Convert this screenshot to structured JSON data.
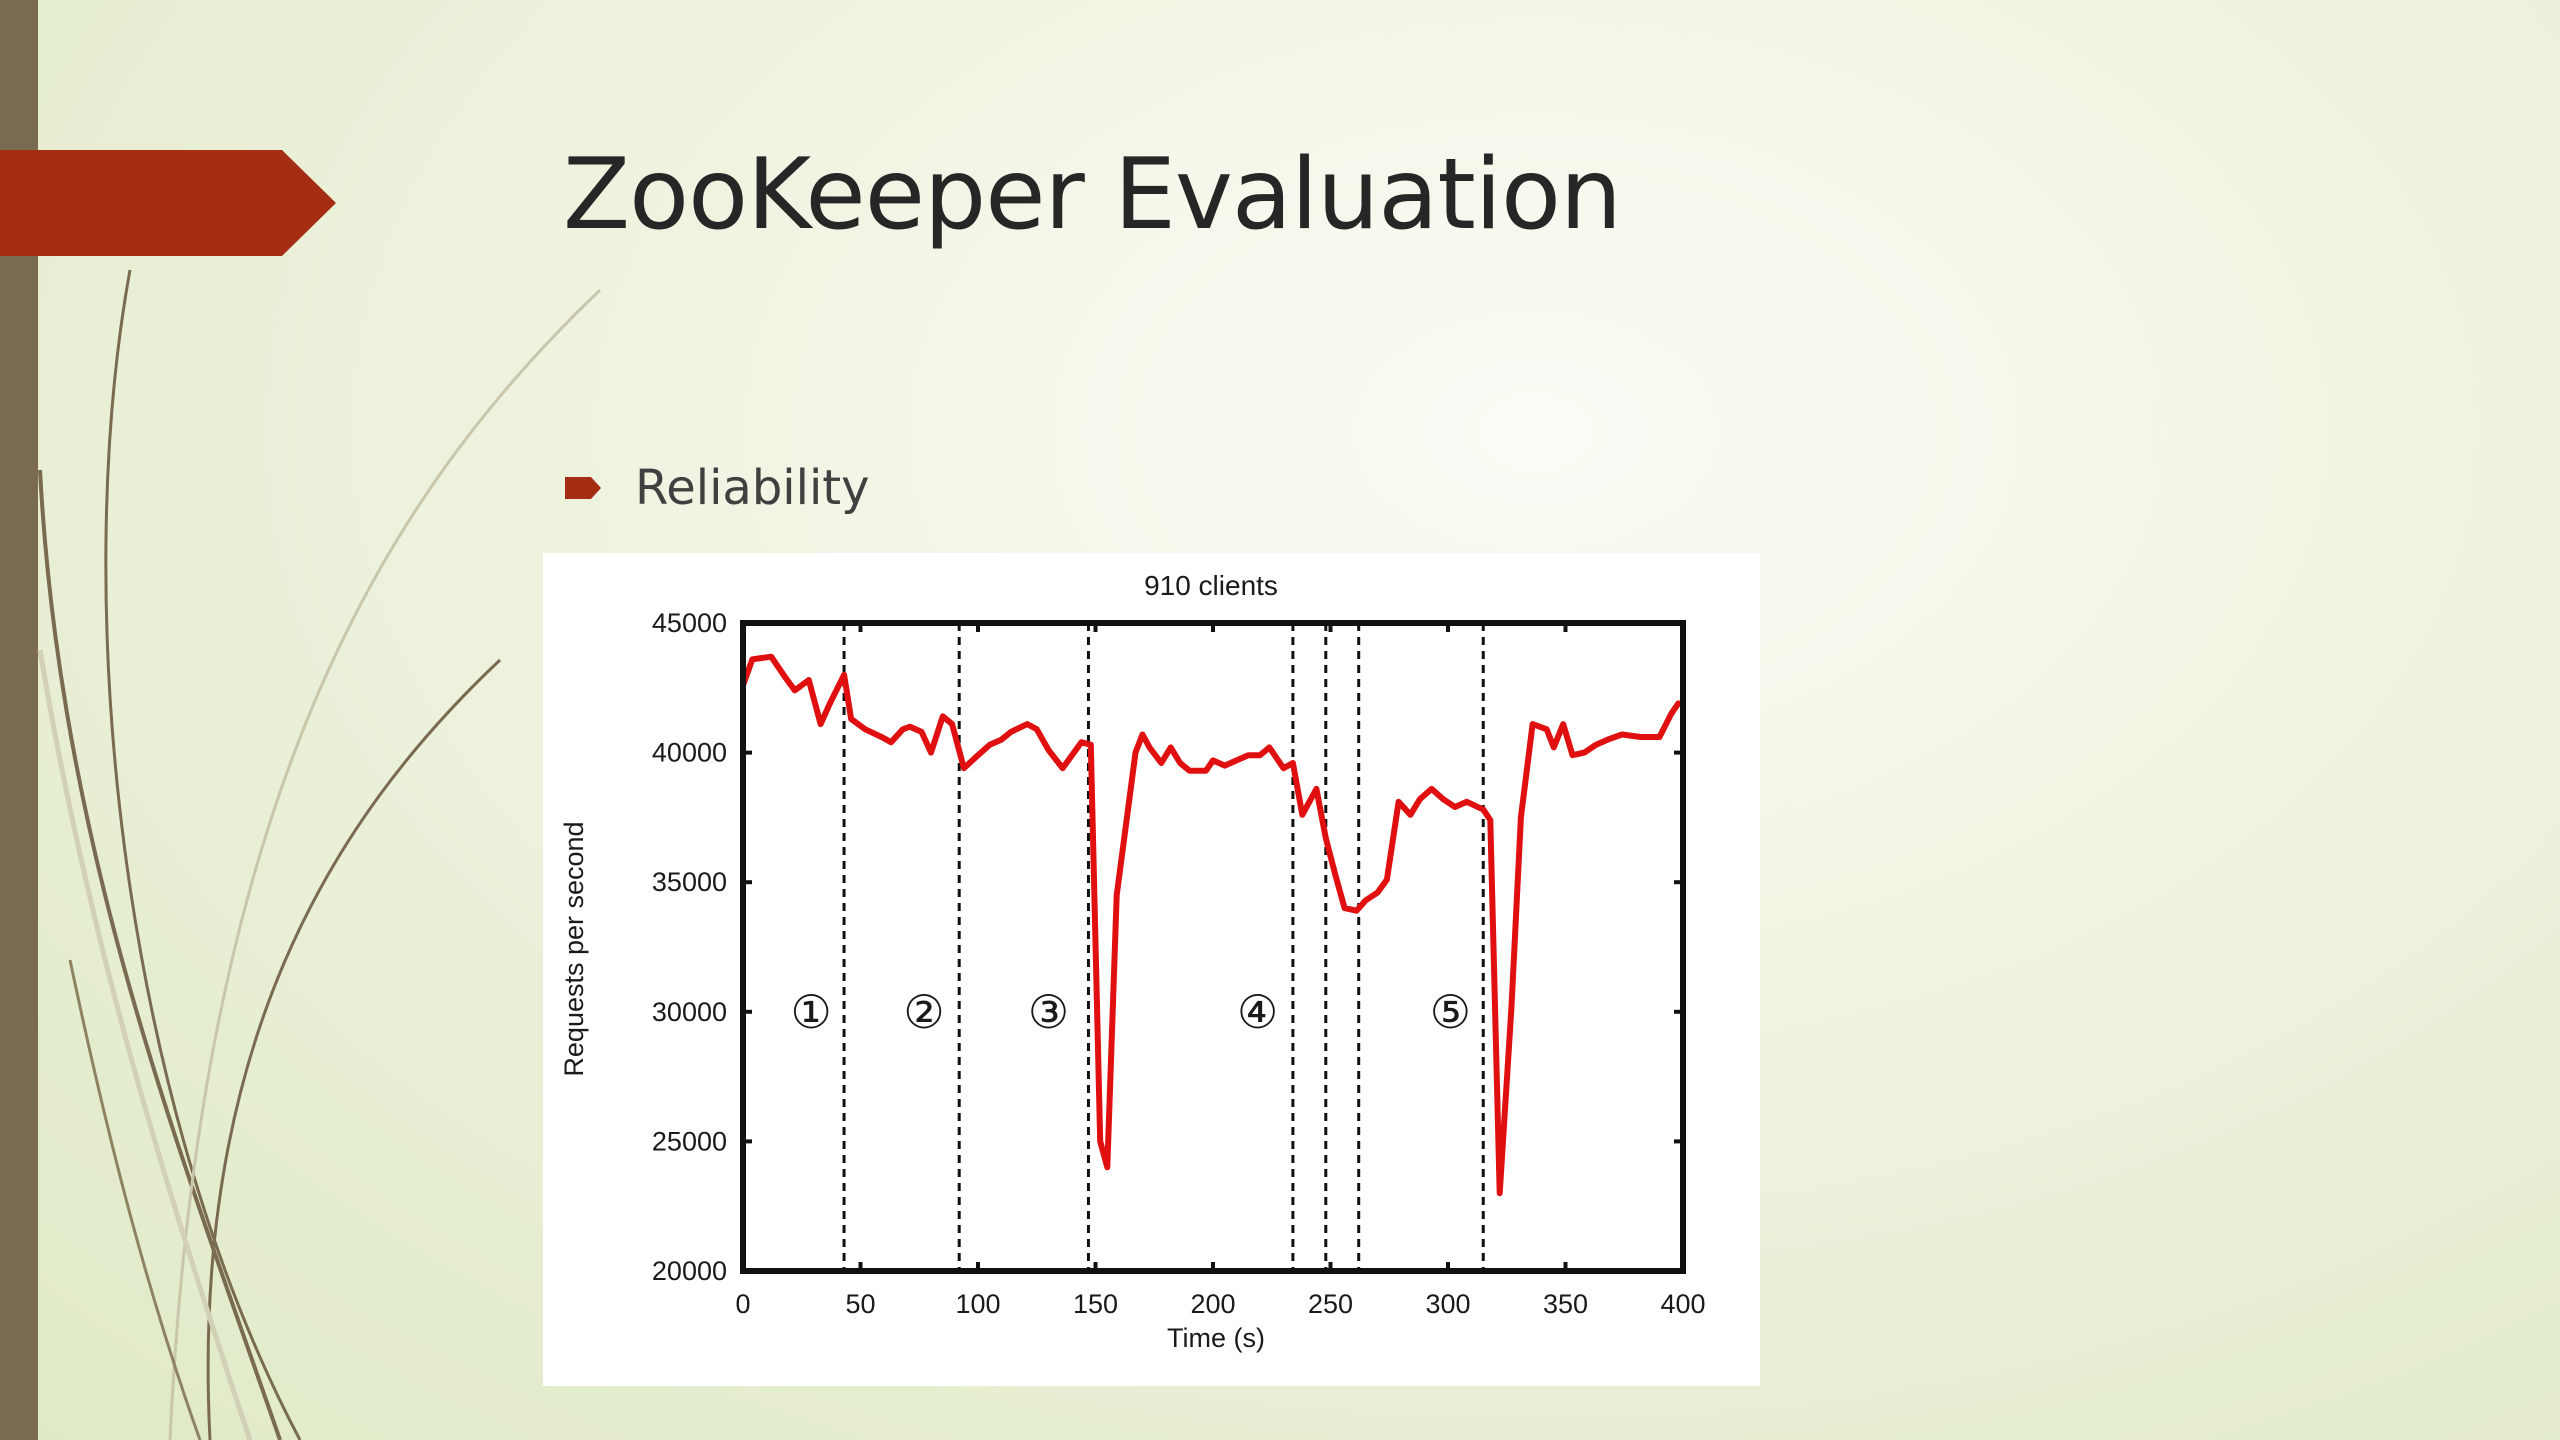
{
  "slide": {
    "title": "ZooKeeper Evaluation",
    "bullet": "Reliability"
  },
  "colors": {
    "accent_arrow": "#a52e12",
    "left_bar": "#7a6a4f",
    "series": "#e01010"
  },
  "chart_data": {
    "type": "line",
    "title": "910 clients",
    "xlabel": "Time (s)",
    "ylabel": "Requests per second",
    "xlim": [
      0,
      400
    ],
    "ylim": [
      20000,
      45000
    ],
    "xticks": [
      0,
      50,
      100,
      150,
      200,
      250,
      300,
      350,
      400
    ],
    "yticks": [
      20000,
      25000,
      30000,
      35000,
      40000,
      45000
    ],
    "xtick_labels": [
      "0",
      "50",
      "100",
      "150",
      "200",
      "250",
      "300",
      "350",
      "400"
    ],
    "ytick_labels": [
      "20000",
      "25000",
      "30000",
      "35000",
      "40000",
      "45000"
    ],
    "grid": false,
    "events": [
      43,
      92,
      147,
      234,
      248,
      262,
      315
    ],
    "annotations": [
      {
        "label": "①",
        "x": 29,
        "y": 30000
      },
      {
        "label": "②",
        "x": 77,
        "y": 30000
      },
      {
        "label": "③",
        "x": 130,
        "y": 30000
      },
      {
        "label": "④",
        "x": 219,
        "y": 30000
      },
      {
        "label": "⑤",
        "x": 301,
        "y": 30000
      }
    ],
    "series": [
      {
        "x": [
          0,
          4,
          12,
          18,
          22,
          28,
          33,
          37,
          43,
          46,
          52,
          59,
          63,
          68,
          71,
          76,
          80,
          85,
          89,
          94,
          100,
          105,
          110,
          114,
          121,
          125,
          130,
          136,
          140,
          144,
          148,
          152,
          155,
          159,
          167,
          170,
          173,
          178,
          182,
          186,
          190,
          197,
          200,
          205,
          210,
          215,
          220,
          224,
          230,
          234,
          238,
          244,
          248,
          252,
          256,
          261,
          265,
          270,
          274,
          279,
          284,
          288,
          293,
          298,
          303,
          308,
          315,
          318,
          322,
          327,
          331,
          336,
          342,
          345,
          349,
          353,
          358,
          363,
          368,
          374,
          382,
          390,
          395,
          398
        ],
        "y": [
          42600,
          43600,
          43700,
          42900,
          42400,
          42800,
          41100,
          41900,
          43000,
          41300,
          40900,
          40600,
          40400,
          40900,
          41000,
          40800,
          40000,
          41400,
          41100,
          39400,
          39900,
          40300,
          40500,
          40800,
          41100,
          40900,
          40100,
          39400,
          39900,
          40400,
          40300,
          25000,
          24000,
          34500,
          40000,
          40700,
          40200,
          39600,
          40200,
          39600,
          39300,
          39300,
          39700,
          39500,
          39700,
          39900,
          39900,
          40200,
          39400,
          39600,
          37600,
          38600,
          36700,
          35300,
          34000,
          33900,
          34300,
          34600,
          35100,
          38100,
          37600,
          38200,
          38600,
          38200,
          37900,
          38100,
          37800,
          37400,
          23000,
          30200,
          37500,
          41100,
          40900,
          40200,
          41100,
          39900,
          40000,
          40300,
          40500,
          40700,
          40600,
          40600,
          41500,
          41900
        ]
      }
    ]
  }
}
